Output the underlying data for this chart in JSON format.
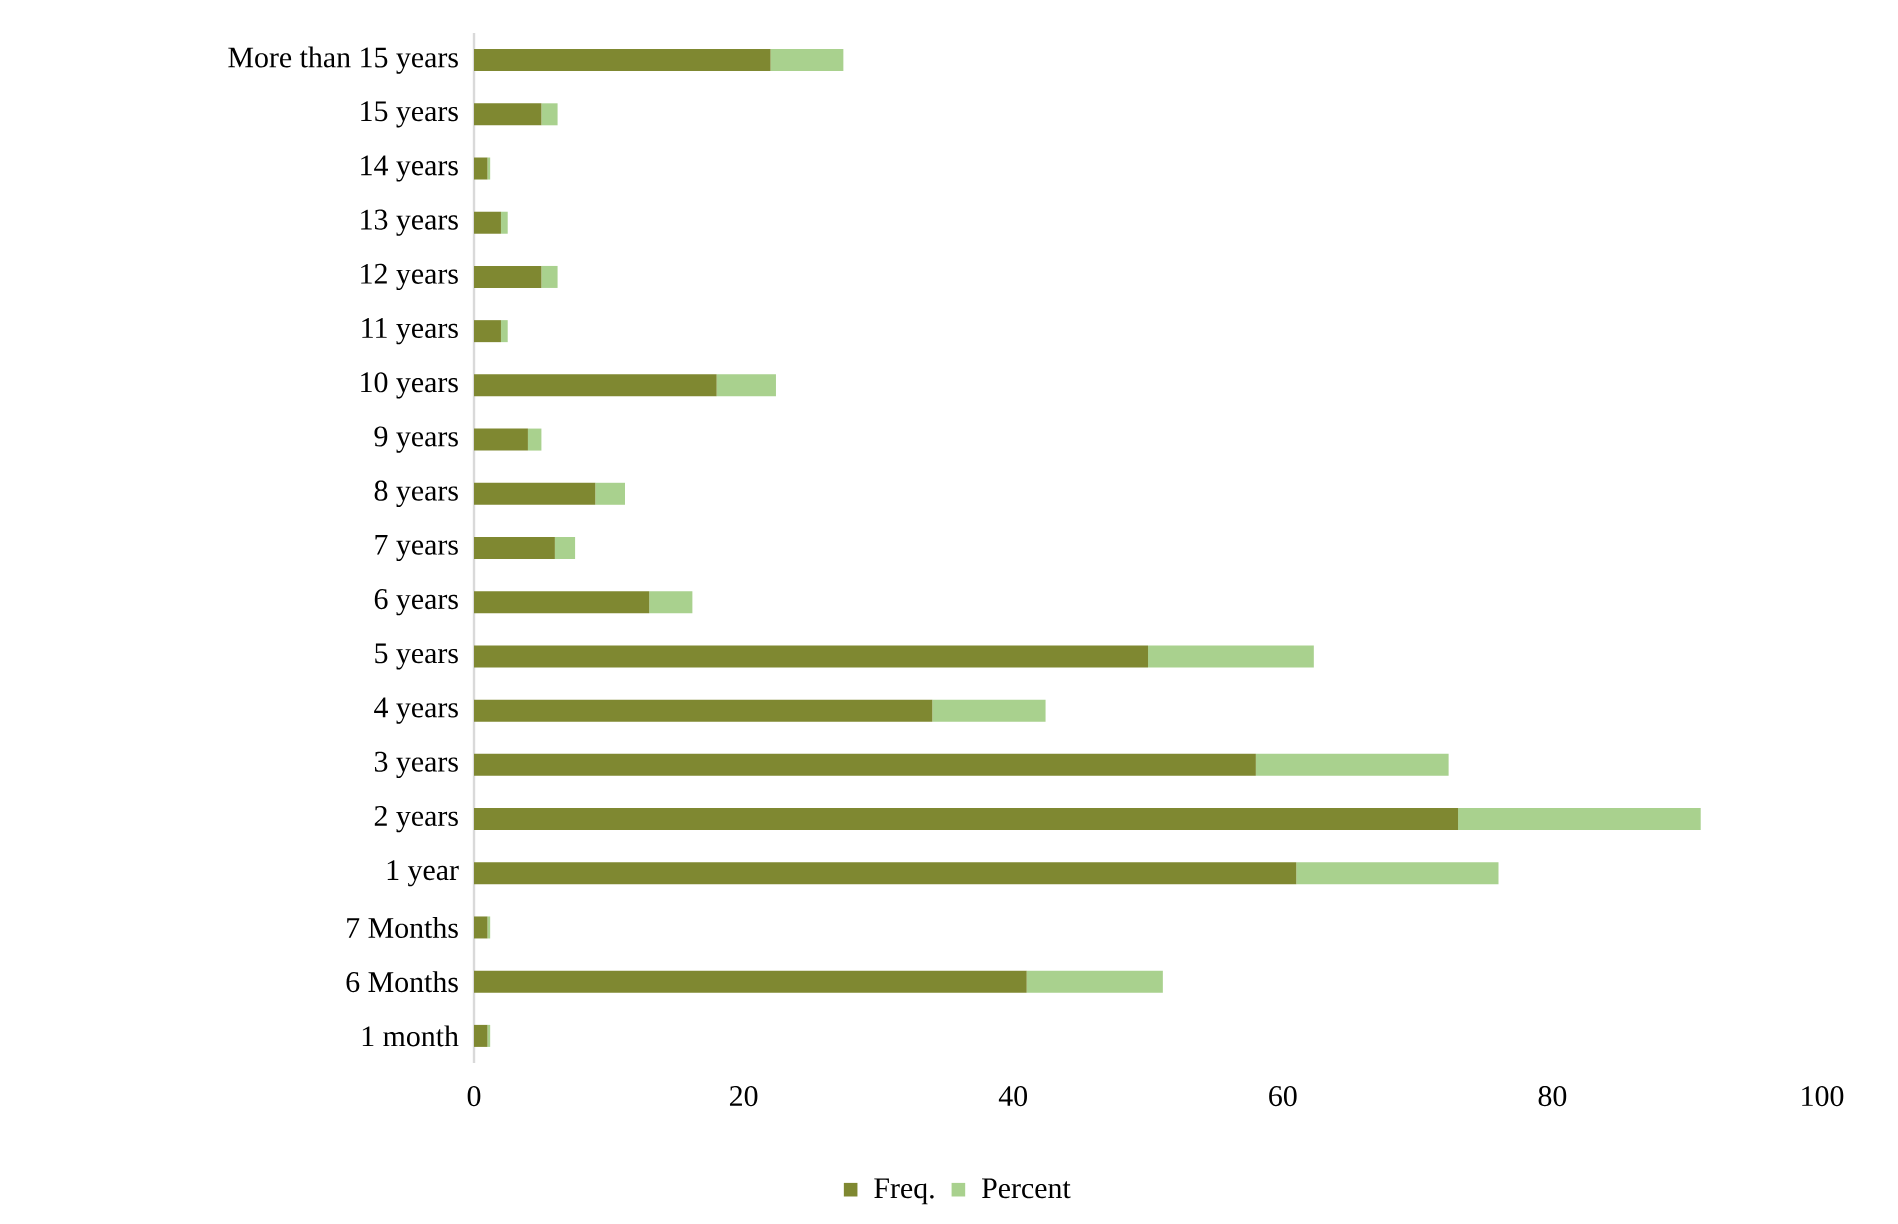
{
  "chart_data": {
    "type": "bar",
    "orientation": "horizontal",
    "stacked": true,
    "legend": "bottom",
    "categories": [
      "More than 15 years",
      "15 years",
      "14 years",
      "13 years",
      "12 years",
      "11 years",
      "10 years",
      "9 years",
      "8 years",
      "7 years",
      "6 years",
      "5 years",
      "4 years",
      "3 years",
      "2 years",
      "1 year",
      "7 Months",
      "6 Months",
      "1 month"
    ],
    "series": [
      {
        "name": "Freq.",
        "color": "#7f8831",
        "values": [
          22,
          5,
          1,
          2,
          5,
          2,
          18,
          4,
          9,
          6,
          13,
          50,
          34,
          58,
          73,
          61,
          1,
          41,
          1
        ]
      },
      {
        "name": "Percent",
        "color": "#a9d18e",
        "values": [
          5.4,
          1.2,
          0.2,
          0.5,
          1.2,
          0.5,
          4.4,
          1.0,
          2.2,
          1.5,
          3.2,
          12.3,
          8.4,
          14.3,
          18.0,
          15.0,
          0.2,
          10.1,
          0.2
        ]
      }
    ],
    "xlim": [
      0,
      100
    ],
    "xticks": [
      0,
      20,
      40,
      60,
      80,
      100
    ]
  }
}
